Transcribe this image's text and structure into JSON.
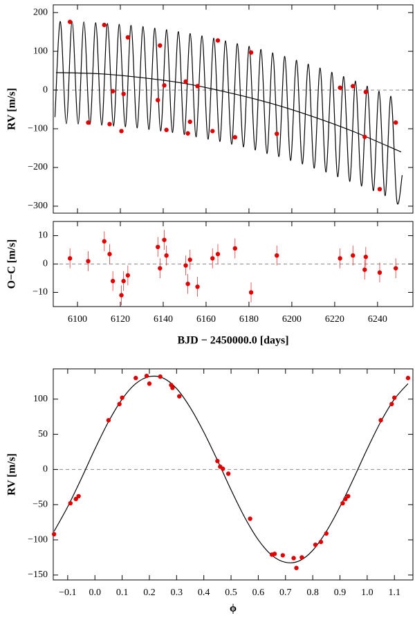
{
  "chart_data": [
    {
      "type": "scatter",
      "ylabel": "RV [m/s]",
      "xlim": [
        6088.7,
        6256.5
      ],
      "ylim": [
        -318,
        220
      ],
      "xticks": [
        6100,
        6120,
        6140,
        6160,
        6180,
        6200,
        6220,
        6240
      ],
      "xticklabels": false,
      "yticks": [
        {
          "value": -300,
          "label": "−300"
        },
        {
          "value": -200,
          "label": "−200"
        },
        {
          "value": -100,
          "label": "−100"
        },
        0,
        100,
        200
      ],
      "hline": 0,
      "series": [
        {
          "mode": "line",
          "color": "#000000",
          "x": [
            6089.5,
            6092.0,
            6094.8,
            6097.5,
            6100.3,
            6103.0,
            6105.8,
            6108.5,
            6111.3,
            6114.0,
            6116.8,
            6119.5,
            6122.3,
            6125.0,
            6127.8,
            6130.6,
            6133.3,
            6136.1,
            6138.8,
            6141.6,
            6144.3,
            6147.1,
            6149.8,
            6152.6,
            6155.3,
            6158.1,
            6160.9,
            6163.6,
            6166.4,
            6169.1,
            6171.9,
            6174.6,
            6177.4,
            6180.1,
            6182.9,
            6185.6,
            6188.4,
            6191.1,
            6193.9,
            6196.7,
            6199.4,
            6202.2,
            6204.9,
            6207.7,
            6210.4,
            6213.2,
            6215.9,
            6218.7,
            6221.4,
            6224.2,
            6227.0,
            6229.7,
            6232.5,
            6235.2,
            6238.0,
            6240.7,
            6243.5,
            6246.2,
            6249.0,
            6251.5
          ],
          "values": [
            -70,
            177,
            -87,
            177,
            -88,
            176,
            -89,
            174,
            -91,
            172,
            -93,
            170,
            -95,
            167,
            -98,
            164,
            -102,
            160,
            -106,
            156,
            -110,
            151,
            -115,
            146,
            -121,
            140,
            -127,
            134,
            -133,
            127,
            -140,
            120,
            -147,
            113,
            -155,
            105,
            -164,
            96,
            -172,
            87,
            -182,
            77,
            -191,
            67,
            -202,
            57,
            -212,
            46,
            -224,
            35,
            -236,
            23,
            -248,
            10,
            -260,
            -3,
            -273,
            -16,
            -287,
            -220
          ]
        },
        {
          "mode": "line",
          "color": "#000000",
          "x": [
            6090,
            6110,
            6130,
            6150,
            6170,
            6190,
            6210,
            6230,
            6251
          ],
          "values": [
            45,
            42,
            32,
            17,
            -6,
            -34,
            -69,
            -110,
            -160
          ]
        },
        {
          "mode": "markers",
          "color": "#e00000",
          "x": [
            6096.5,
            6105,
            6112.5,
            6115,
            6116.5,
            6120.5,
            6121.5,
            6123.5,
            6137.5,
            6138.5,
            6140.5,
            6141.5,
            6150.5,
            6151.5,
            6152.5,
            6156,
            6163,
            6165.5,
            6173.5,
            6181,
            6193,
            6222.5,
            6228.5,
            6234,
            6234.5,
            6241,
            6248.5
          ],
          "values": [
            176,
            -84,
            168,
            -88,
            -3,
            -106,
            -10,
            136,
            -26,
            115,
            12,
            -103,
            22,
            -112,
            -82,
            10,
            -106,
            128,
            -122,
            97,
            -113,
            6,
            10,
            -121,
            -5,
            -256,
            -84
          ]
        }
      ]
    },
    {
      "type": "scatter",
      "ylabel": "O−C [m/s]",
      "xlabel": "BJD − 2450000.0 [days]",
      "xlim": [
        6088.7,
        6256.5
      ],
      "ylim": [
        -15,
        15
      ],
      "xticks": [
        6100,
        6120,
        6140,
        6160,
        6180,
        6200,
        6220,
        6240
      ],
      "xticklabels": true,
      "yticks": [
        {
          "value": -10,
          "label": "−10"
        },
        0,
        10
      ],
      "hline": 0,
      "series": [
        {
          "mode": "markers",
          "color": "#e00000",
          "x": [
            6096.5,
            6105,
            6112.5,
            6115,
            6116.5,
            6120.5,
            6121.5,
            6123.5,
            6137.5,
            6138.5,
            6140.5,
            6141.5,
            6150.5,
            6151.5,
            6152.5,
            6156,
            6163,
            6165.5,
            6173.5,
            6181,
            6193,
            6222.5,
            6228.5,
            6234,
            6234.5,
            6241,
            6248.5
          ],
          "values": [
            2,
            1,
            8,
            3.5,
            -6,
            -11,
            -6,
            -4,
            6,
            -1.5,
            8.5,
            3,
            -0.5,
            -7,
            1.5,
            -8,
            2,
            3.5,
            5.5,
            -10,
            3,
            2,
            3,
            -2,
            2.5,
            -3,
            -1.5
          ],
          "errors": [
            3.5,
            3.5,
            3.5,
            3.5,
            3.5,
            3.5,
            3.5,
            3.5,
            3.5,
            3.5,
            3.5,
            3.5,
            3.5,
            3.5,
            3.5,
            3.5,
            3.5,
            3.5,
            3.5,
            3.5,
            3.5,
            3.5,
            3.5,
            3.5,
            3.5,
            3.5,
            3.5
          ]
        }
      ]
    },
    {
      "type": "scatter",
      "ylabel": "RV [m/s]",
      "xlabel": "ϕ",
      "xlim": [
        -0.153,
        1.168
      ],
      "ylim": [
        -157,
        143
      ],
      "xticks": [
        {
          "value": -0.1,
          "label": "−0.1"
        },
        {
          "value": 0,
          "label": "0.0"
        },
        0.1,
        0.2,
        0.3,
        0.4,
        0.5,
        0.6,
        0.7,
        0.8,
        0.9,
        {
          "value": 1,
          "label": "1.0"
        },
        1.1
      ],
      "xticklabels": true,
      "yticks": [
        {
          "value": -150,
          "label": "−150"
        },
        {
          "value": -100,
          "label": "−100"
        },
        {
          "value": -50,
          "label": "−50"
        },
        0,
        50,
        100
      ],
      "hline": 0,
      "series": [
        {
          "mode": "line",
          "color": "#000000",
          "x": [
            -0.15,
            -0.1,
            -0.05,
            0,
            0.05,
            0.1,
            0.15,
            0.2,
            0.25,
            0.3,
            0.35,
            0.4,
            0.45,
            0.5,
            0.55,
            0.6,
            0.65,
            0.7,
            0.75,
            0.8,
            0.85,
            0.9,
            0.95,
            1.0,
            1.05,
            1.1,
            1.15
          ],
          "values": [
            -88,
            -53,
            -13,
            29,
            68,
            100,
            122,
            132,
            130,
            115,
            88,
            53,
            13,
            -29,
            -68,
            -100,
            -122,
            -132,
            -130,
            -115,
            -88,
            -53,
            -13,
            29,
            68,
            100,
            122
          ]
        },
        {
          "mode": "markers",
          "color": "#e00000",
          "x": [
            -0.15,
            -0.09,
            -0.07,
            -0.06,
            0.05,
            0.09,
            0.1,
            0.15,
            0.19,
            0.2,
            0.24,
            0.28,
            0.285,
            0.31,
            0.45,
            0.46,
            0.47,
            0.49,
            0.57,
            0.65,
            0.66,
            0.69,
            0.73,
            0.74,
            0.76,
            0.81,
            0.83,
            0.85,
            0.91,
            0.92,
            0.93,
            1.05,
            1.09,
            1.1,
            1.15
          ],
          "values": [
            -92,
            -48,
            -42,
            -38,
            70,
            93,
            102,
            130,
            133,
            122,
            132,
            120,
            116,
            104,
            12,
            4,
            1,
            -6,
            -70,
            -121,
            -120,
            -122,
            -126,
            -140,
            -125,
            -107,
            -103,
            -91,
            -48,
            -42,
            -38,
            70,
            93,
            102,
            130
          ]
        }
      ]
    }
  ]
}
